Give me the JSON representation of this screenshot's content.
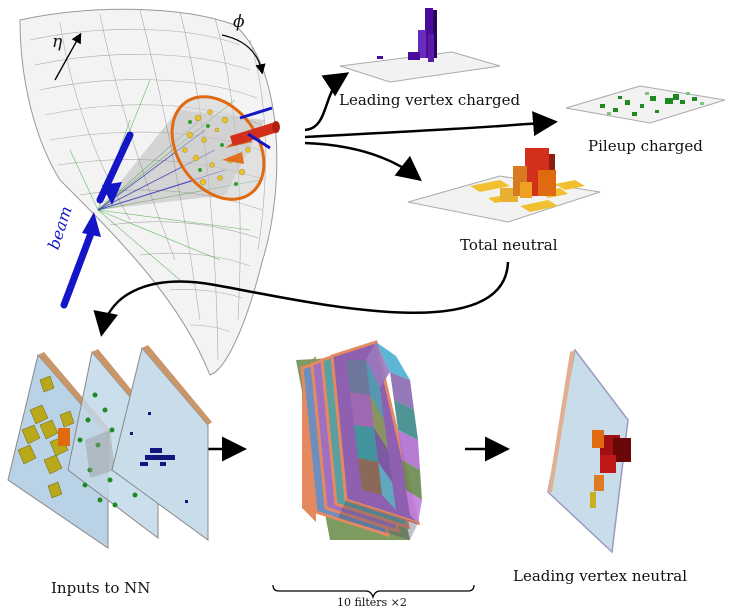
{
  "labels": {
    "eta": "η",
    "phi": "ϕ",
    "beam": "beam",
    "leading_vertex_charged": "Leading vertex charged",
    "pileup_charged": "Pileup charged",
    "total_neutral": "Total neutral",
    "inputs_to_nn": "Inputs to NN",
    "filters": "10 filters ×2",
    "leading_vertex_neutral": "Leading vertex neutral"
  },
  "colors": {
    "beam": "#1515c8",
    "charged_leading": "#4b0c9c",
    "pileup": "#1f8a1f",
    "neutral_low": "#e8c033",
    "neutral_high": "#d2301a",
    "output": "#a01010",
    "panel": "#b9d2e6"
  }
}
